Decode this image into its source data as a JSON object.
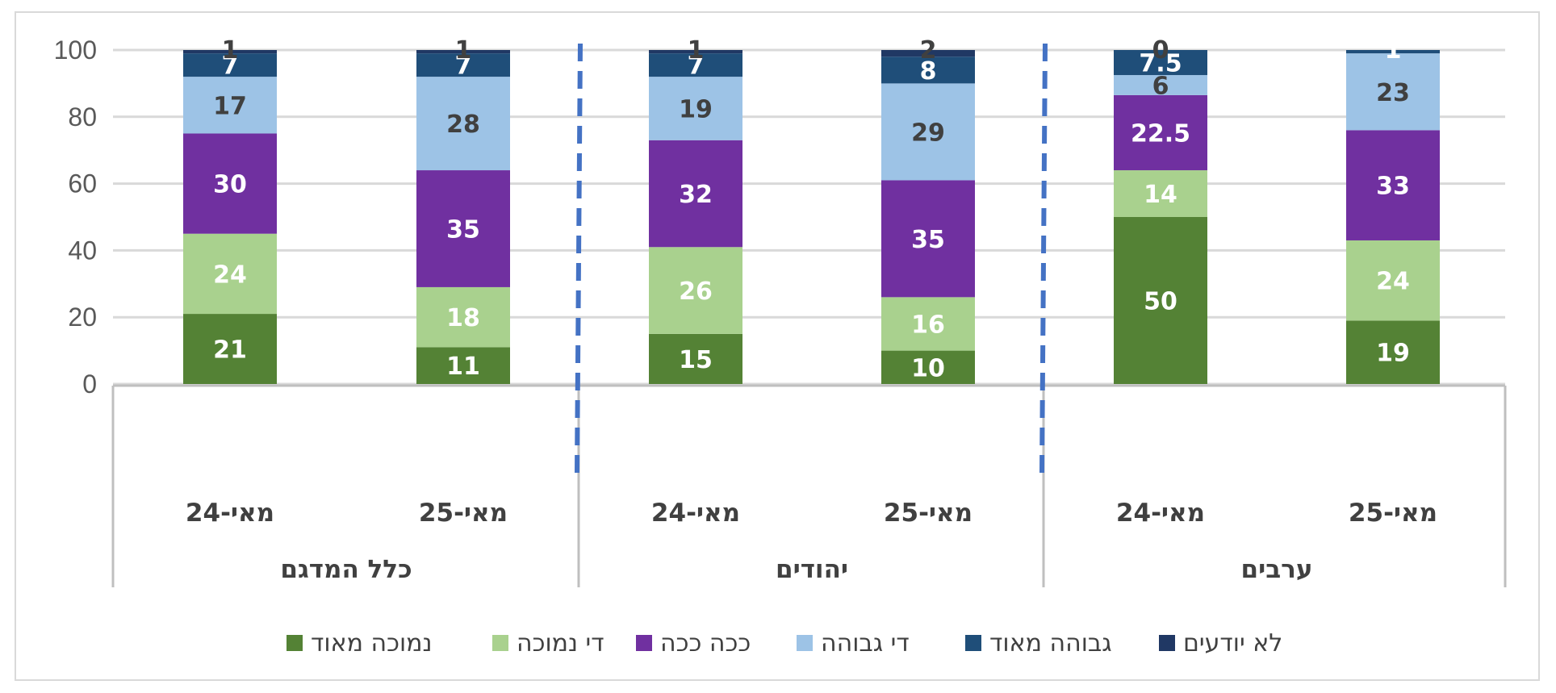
{
  "chart_data": {
    "type": "bar",
    "stacked": true,
    "title": "",
    "xlabel": "",
    "ylabel": "",
    "ylim": [
      0,
      100
    ],
    "yticks": [
      0,
      20,
      40,
      60,
      80,
      100
    ],
    "grid": true,
    "legend_position": "bottom",
    "groups": [
      {
        "label": "כלל המדגם",
        "categories": [
          "מאי-24",
          "מאי-25"
        ]
      },
      {
        "label": "יהודים",
        "categories": [
          "מאי-24",
          "מאי-25"
        ]
      },
      {
        "label": "ערבים",
        "categories": [
          "מאי-24",
          "מאי-25"
        ]
      }
    ],
    "bars": [
      {
        "group": "כלל המדגם",
        "category": "מאי-24",
        "values": [
          21,
          24,
          30,
          17,
          7,
          1
        ]
      },
      {
        "group": "כלל המדגם",
        "category": "מאי-25",
        "values": [
          11,
          18,
          35,
          28,
          7,
          1
        ]
      },
      {
        "group": "יהודים",
        "category": "מאי-24",
        "values": [
          15,
          26,
          32,
          19,
          7,
          1
        ]
      },
      {
        "group": "יהודים",
        "category": "מאי-25",
        "values": [
          10,
          16,
          35,
          29,
          8,
          2
        ]
      },
      {
        "group": "ערבים",
        "category": "מאי-24",
        "values": [
          50,
          14,
          22.5,
          6,
          7.5,
          0
        ]
      },
      {
        "group": "ערבים",
        "category": "מאי-25",
        "values": [
          19,
          24,
          33,
          23,
          1,
          0
        ]
      }
    ],
    "series": [
      {
        "name": "נמוכה מאוד",
        "color": "#548235",
        "label_color": "#ffffff"
      },
      {
        "name": "די נמוכה",
        "color": "#a9d18e",
        "label_color": "#ffffff"
      },
      {
        "name": "ככה ככה",
        "color": "#7030a0",
        "label_color": "#ffffff"
      },
      {
        "name": "די גבוהה",
        "color": "#9dc3e6",
        "label_color": "#404040"
      },
      {
        "name": "גבוהה מאוד",
        "color": "#1f4e79",
        "label_color": "#ffffff"
      },
      {
        "name": "לא יודעים",
        "color": "#203864",
        "label_color": "#404040"
      }
    ],
    "bar_labels": [
      [
        "21",
        "24",
        "30",
        "17",
        "7",
        "1"
      ],
      [
        "11",
        "18",
        "35",
        "28",
        "7",
        "1"
      ],
      [
        "15",
        "26",
        "32",
        "19",
        "7",
        "1"
      ],
      [
        "10",
        "16",
        "35",
        "29",
        "8",
        "2"
      ],
      [
        "50",
        "14",
        "22.5",
        "6",
        "7.5",
        "0"
      ],
      [
        "19",
        "24",
        "33",
        "23",
        "1",
        ""
      ]
    ],
    "colors": {
      "gridline": "#d9d9d9",
      "axis": "#bfbfbf",
      "separator": "#4472c4"
    }
  }
}
